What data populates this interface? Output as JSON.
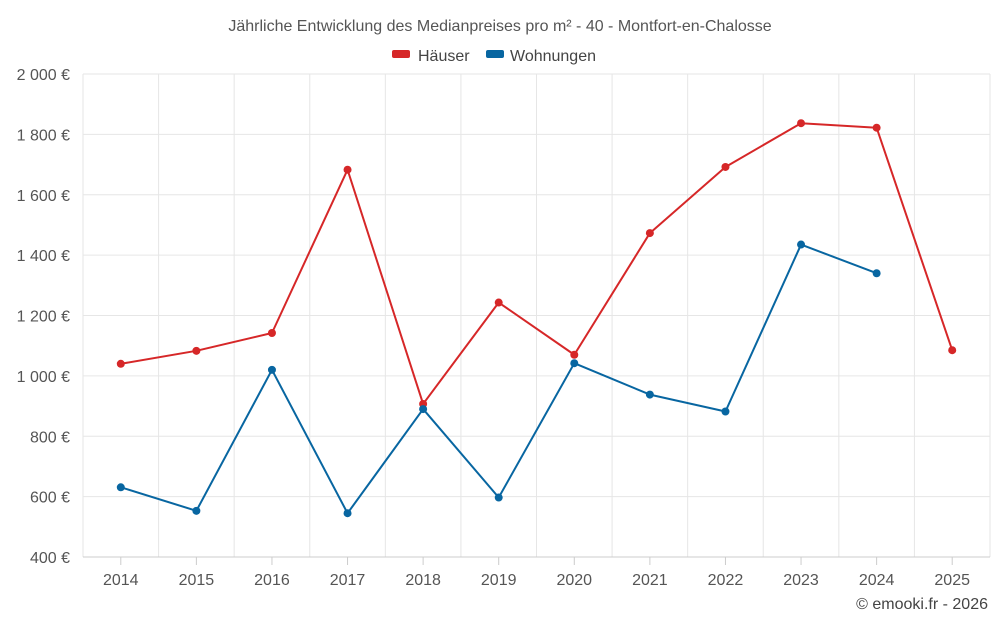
{
  "chart_data": {
    "type": "line",
    "title": "Jährliche Entwicklung des Medianpreises pro m² - 40 - Montfort-en-Chalosse",
    "categories": [
      "2014",
      "2015",
      "2016",
      "2017",
      "2018",
      "2019",
      "2020",
      "2021",
      "2022",
      "2023",
      "2024",
      "2025"
    ],
    "series": [
      {
        "name": "Häuser",
        "color": "#d62728",
        "values": [
          1040,
          1083,
          1142,
          1683,
          907,
          1243,
          1070,
          1473,
          1692,
          1837,
          1822,
          1085
        ]
      },
      {
        "name": "Wohnungen",
        "color": "#0866a1",
        "values": [
          631,
          553,
          1020,
          545,
          890,
          597,
          1042,
          938,
          882,
          1435,
          1340,
          null
        ]
      }
    ],
    "ylim": [
      400,
      2000
    ],
    "yticks": [
      400,
      600,
      800,
      1000,
      1200,
      1400,
      1600,
      1800,
      2000
    ],
    "ytick_labels": [
      "400 €",
      "600 €",
      "800 €",
      "1 000 €",
      "1 200 €",
      "1 400 €",
      "1 600 €",
      "1 800 €",
      "2 000 €"
    ],
    "xlabel": "",
    "ylabel": "",
    "grid": true,
    "legend_position": "top-center"
  },
  "credit": "© emooki.fr - 2026"
}
